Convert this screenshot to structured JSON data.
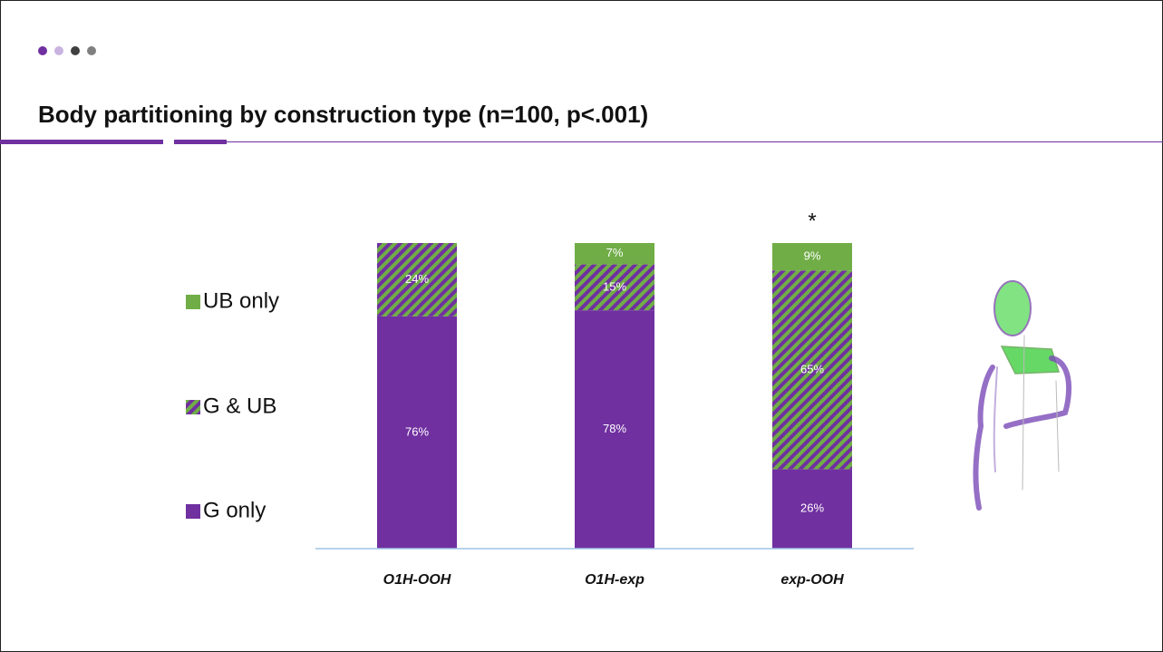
{
  "chart_data": {
    "type": "stacked-bar",
    "title": "Body partitioning by construction type (n=100, p<.001)",
    "categories": [
      "O1H-OOH",
      "O1H-exp",
      "exp-OOH"
    ],
    "series": [
      {
        "name": "G only",
        "color": "#7030a0",
        "values": [
          76,
          78,
          26
        ],
        "value_labels": [
          "76%",
          "78%",
          "26%"
        ]
      },
      {
        "name": "G & UB",
        "color": "#70ad47",
        "pattern": "diagonal-stripes",
        "stripe_color": "#7030a0",
        "values": [
          24,
          15,
          65
        ],
        "value_labels": [
          "24%",
          "15%",
          "65%"
        ]
      },
      {
        "name": "UB only",
        "color": "#70ad47",
        "values": [
          0,
          7,
          9
        ],
        "value_labels": [
          null,
          "7%",
          "9%"
        ]
      }
    ],
    "annotations": [
      {
        "text": "*",
        "category": 2
      }
    ],
    "ylim": [
      0,
      100
    ]
  }
}
